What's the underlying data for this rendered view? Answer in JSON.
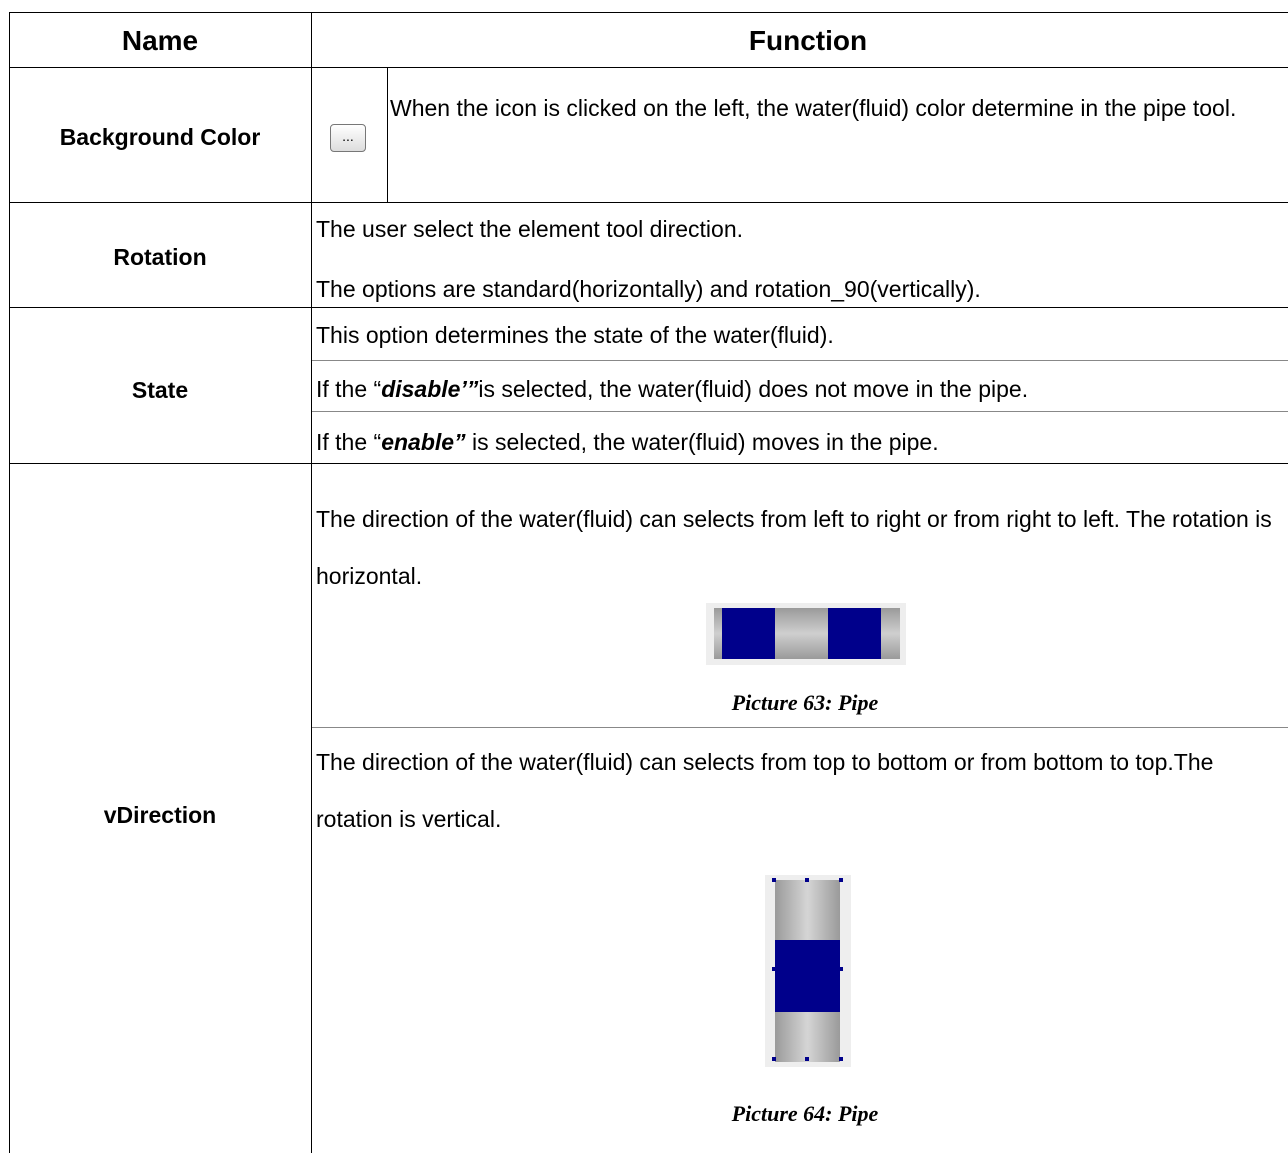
{
  "table": {
    "header": [
      "Name",
      "Function"
    ],
    "rows": [
      {
        "name": "Background Color",
        "icon": "...",
        "lines": [
          "When the icon is clicked on the left, the water(fluid) color determine in the pipe tool."
        ]
      },
      {
        "name": "Rotation",
        "lines": [
          "The user select the element tool direction.",
          "The options are standard(horizontally) and rotation_90(vertically)."
        ]
      },
      {
        "name": "State",
        "lines": [
          "This option determines the state of the water(fluid).",
          [
            "If the “",
            "disable’”",
            "is selected, the water(fluid) does not move in the pipe."
          ],
          [
            "If the “",
            "enable”",
            " is selected, the water(fluid) moves in the pipe."
          ]
        ]
      },
      {
        "name": "vDirection",
        "lines": [
          "The direction of the water(fluid) can selects from left to right or from right to left. The rotation is horizontal.",
          "The direction of the water(fluid) can selects from top to bottom or from bottom to top.The rotation is vertical."
        ],
        "captions": [
          "Picture 63: Pipe",
          "Picture 64: Pipe"
        ]
      }
    ]
  }
}
